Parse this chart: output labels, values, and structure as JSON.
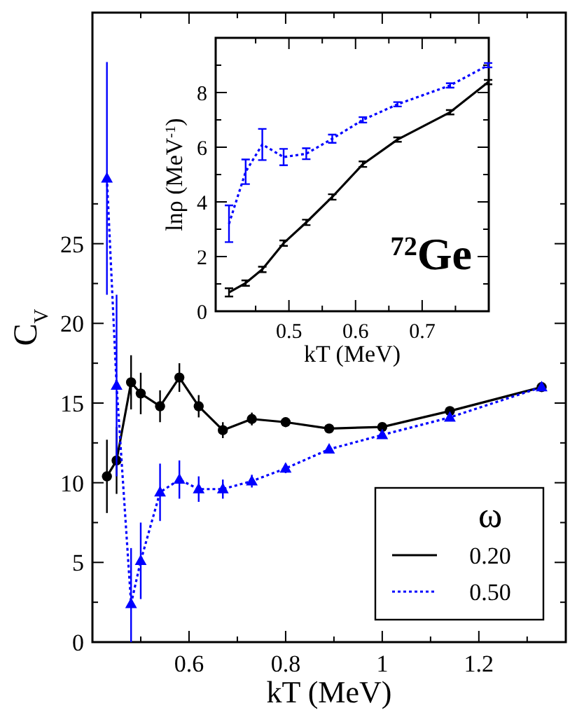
{
  "chart_data": [
    {
      "type": "line",
      "xlabel": "kT (MeV)",
      "ylabel": "C$_{V}$",
      "legend_title": "ω",
      "legend": "bottom right",
      "xlim": [
        0.4,
        1.38
      ],
      "ylim": [
        0,
        39.5
      ],
      "xticks": [
        {
          "value": 0.5,
          "label": null
        },
        0.6,
        {
          "value": 0.7,
          "label": null
        },
        0.8,
        {
          "value": 0.9,
          "label": null
        },
        1,
        {
          "value": 1.1,
          "label": null
        },
        1.2,
        {
          "value": 1.3,
          "label": null
        }
      ],
      "yticks": [
        0,
        {
          "value": 2.5,
          "label": null
        },
        5,
        {
          "value": 7.5,
          "label": null
        },
        10,
        {
          "value": 12.5,
          "label": null
        },
        15,
        {
          "value": 17.5,
          "label": null
        },
        20,
        {
          "value": 22.5,
          "label": null
        },
        25,
        {
          "value": 27.5,
          "label": null
        }
      ],
      "x": [
        0.43,
        0.45,
        0.48,
        0.5,
        0.54,
        0.58,
        0.62,
        0.67,
        0.73,
        0.8,
        0.89,
        1.0,
        1.14,
        1.33
      ],
      "series": [
        {
          "name": "0.20",
          "color": "#000000",
          "marker": "circle",
          "line_style": "solid",
          "values": [
            10.4,
            11.4,
            16.3,
            15.6,
            14.8,
            16.6,
            14.8,
            13.3,
            14.0,
            13.8,
            13.4,
            13.5,
            14.5,
            16.0
          ],
          "errors": [
            2.3,
            2.1,
            1.7,
            1.3,
            1.0,
            0.9,
            0.7,
            0.5,
            0.4,
            0.3,
            0.2,
            0.2,
            0.2,
            0.2
          ]
        },
        {
          "name": "0.50",
          "color": "#0000ff",
          "marker": "triangle",
          "line_style": "dotted",
          "values": [
            29.1,
            16.1,
            2.4,
            5.1,
            9.4,
            10.2,
            9.6,
            9.6,
            10.1,
            10.9,
            12.1,
            13.0,
            14.1,
            16.0
          ],
          "errors": [
            7.3,
            5.7,
            [
              0,
              5.9
            ],
            2.4,
            1.8,
            1.2,
            0.8,
            0.6,
            0.4,
            0.3,
            0.2,
            0.2,
            0.2,
            0.2
          ]
        }
      ]
    },
    {
      "type": "line",
      "xlabel": "kT (MeV)",
      "ylabel": "lnρ (MeV$^{-1}$)",
      "annotations": [
        "$^{72}$Ge"
      ],
      "xlim": [
        0.39,
        0.8
      ],
      "ylim": [
        0,
        10
      ],
      "xticks": [
        {
          "value": 0.45,
          "label": null
        },
        0.5,
        {
          "value": 0.55,
          "label": null
        },
        0.6,
        {
          "value": 0.65,
          "label": null
        },
        0.7,
        {
          "value": 0.75,
          "label": null
        }
      ],
      "yticks": [
        0,
        {
          "value": 1,
          "label": null
        },
        2,
        {
          "value": 3,
          "label": null
        },
        4,
        {
          "value": 5,
          "label": null
        },
        6,
        {
          "value": 7,
          "label": null
        },
        8,
        {
          "value": 9,
          "label": null
        }
      ],
      "x": [
        0.41,
        0.435,
        0.46,
        0.492,
        0.526,
        0.565,
        0.611,
        0.663,
        0.742,
        0.799
      ],
      "series": [
        {
          "color": "#000000",
          "line_style": "solid",
          "values": [
            0.69,
            1.03,
            1.53,
            2.49,
            3.25,
            4.18,
            5.38,
            6.28,
            7.28,
            8.38
          ],
          "errors": [
            0.15,
            0.1,
            0.1,
            0.1,
            0.1,
            0.1,
            0.1,
            0.08,
            0.08,
            0.08
          ]
        },
        {
          "color": "#0000ff",
          "line_style": "dotted",
          "values": [
            3.2,
            5.1,
            6.1,
            5.64,
            5.76,
            6.31,
            7.0,
            7.57,
            8.26,
            9.0
          ],
          "errors": [
            0.67,
            0.45,
            0.57,
            0.3,
            0.2,
            0.15,
            0.1,
            0.08,
            0.08,
            0.08
          ]
        }
      ]
    }
  ]
}
